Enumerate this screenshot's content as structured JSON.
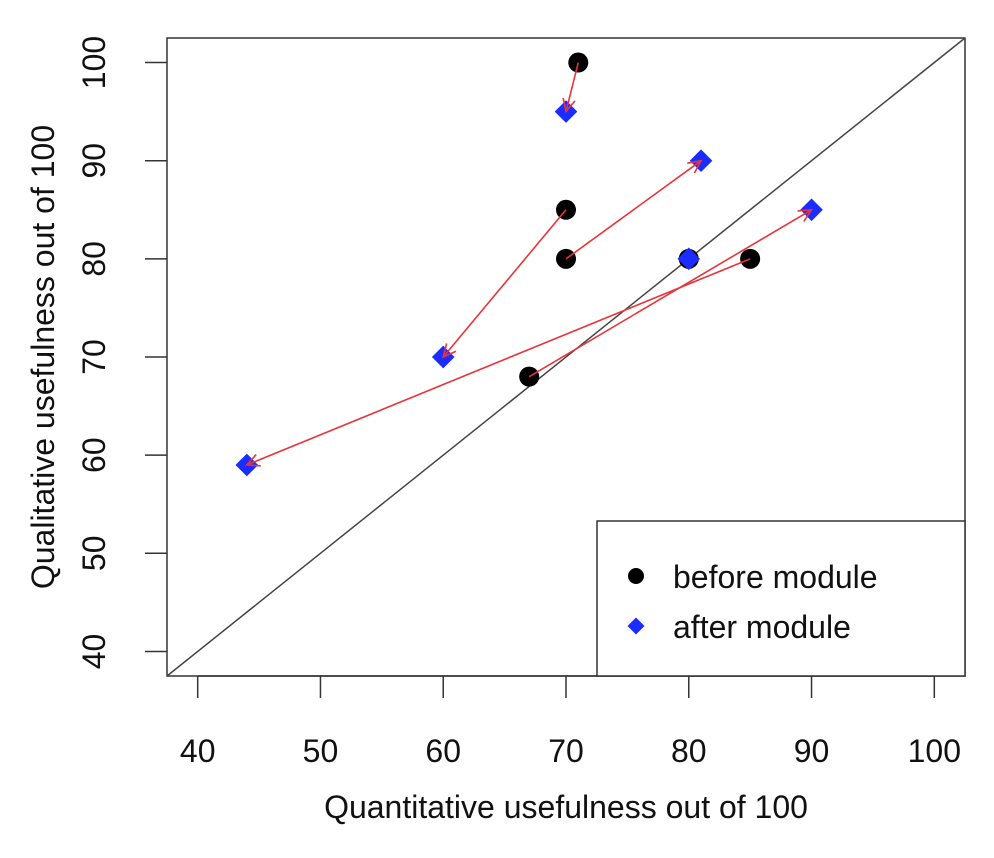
{
  "chart_data": {
    "type": "scatter",
    "title": "",
    "xlabel": "Quantitative usefulness out of 100",
    "ylabel": "Qualitative usefulness out of 100",
    "xlim": [
      37.5,
      102.5
    ],
    "ylim": [
      37.5,
      102.5
    ],
    "xticks": [
      40,
      50,
      60,
      70,
      80,
      90,
      100
    ],
    "yticks": [
      40,
      50,
      60,
      70,
      80,
      90,
      100
    ],
    "reference_line": "y = x",
    "legend_position": "bottom-right",
    "series": [
      {
        "name": "before module",
        "marker": "circle",
        "color": "#000000",
        "points": [
          [
            71,
            100
          ],
          [
            70,
            85
          ],
          [
            70,
            80
          ],
          [
            85,
            80
          ],
          [
            67,
            68
          ],
          [
            80,
            80
          ]
        ]
      },
      {
        "name": "after module",
        "marker": "diamond",
        "color": "#1a2cff",
        "points": [
          [
            70,
            95
          ],
          [
            60,
            70
          ],
          [
            81,
            90
          ],
          [
            44,
            59
          ],
          [
            90,
            85
          ],
          [
            80,
            80
          ]
        ]
      }
    ],
    "arrows": {
      "color": "#e8333a",
      "pairs": [
        {
          "from": [
            71,
            100
          ],
          "to": [
            70,
            95
          ]
        },
        {
          "from": [
            70,
            85
          ],
          "to": [
            60,
            70
          ]
        },
        {
          "from": [
            70,
            80
          ],
          "to": [
            81,
            90
          ]
        },
        {
          "from": [
            85,
            80
          ],
          "to": [
            44,
            59
          ]
        },
        {
          "from": [
            67,
            68
          ],
          "to": [
            90,
            85
          ]
        },
        {
          "from": [
            80,
            80
          ],
          "to": [
            80,
            80
          ]
        }
      ]
    },
    "legend": [
      "before module",
      "after module"
    ]
  }
}
